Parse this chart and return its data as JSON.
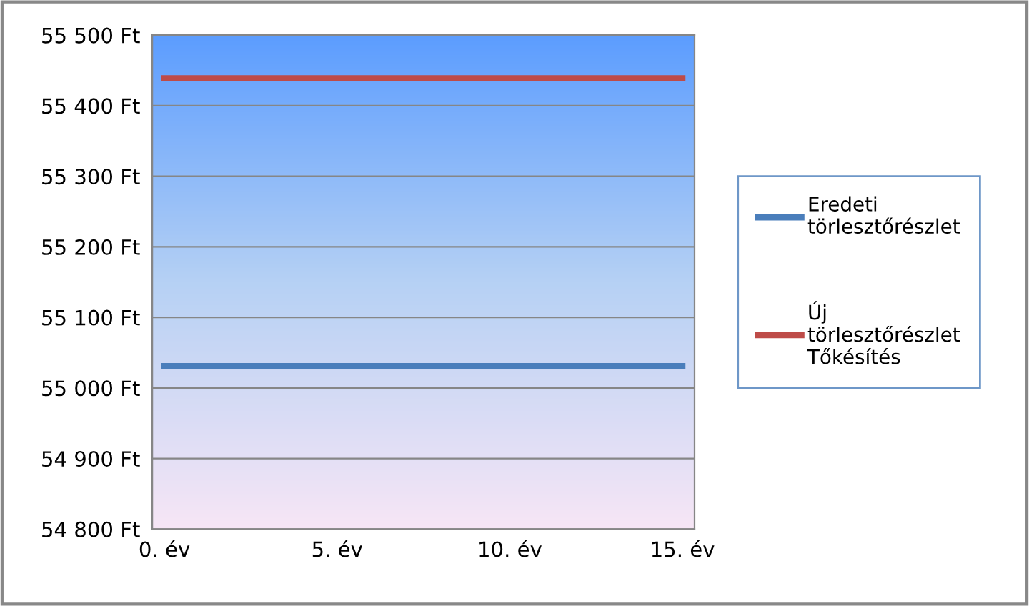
{
  "chart_data": {
    "type": "line",
    "categories": [
      "0. év",
      null,
      null,
      null,
      null,
      "5. év",
      null,
      null,
      null,
      null,
      "10. év",
      null,
      null,
      null,
      null,
      "15. év"
    ],
    "series": [
      {
        "name": "Eredeti\ntörlesztőrészlet",
        "color": "#4a7ebb",
        "values": [
          55031,
          55031,
          55031,
          55031,
          55031,
          55031,
          55031,
          55031,
          55031,
          55031,
          55031,
          55031,
          55031,
          55031,
          55031,
          55031
        ]
      },
      {
        "name": "Új\ntörlesztőrészlet\nTőkésítés",
        "color": "#be4b48",
        "values": [
          55439,
          55439,
          55439,
          55439,
          55439,
          55439,
          55439,
          55439,
          55439,
          55439,
          55439,
          55439,
          55439,
          55439,
          55439,
          55439
        ]
      }
    ],
    "ylim": [
      54800,
      55500
    ],
    "yticks": [
      {
        "value": 54800,
        "label": "54 800 Ft"
      },
      {
        "value": 54900,
        "label": "54 900 Ft"
      },
      {
        "value": 55000,
        "label": "55 000 Ft"
      },
      {
        "value": 55100,
        "label": "55 100 Ft"
      },
      {
        "value": 55200,
        "label": "55 200 Ft"
      },
      {
        "value": 55300,
        "label": "55 300 Ft"
      },
      {
        "value": 55400,
        "label": "55 400 Ft"
      },
      {
        "value": 55500,
        "label": "55 500 Ft"
      }
    ],
    "grid": "y",
    "legend": "right",
    "marker": "none",
    "line_style": "solid"
  }
}
